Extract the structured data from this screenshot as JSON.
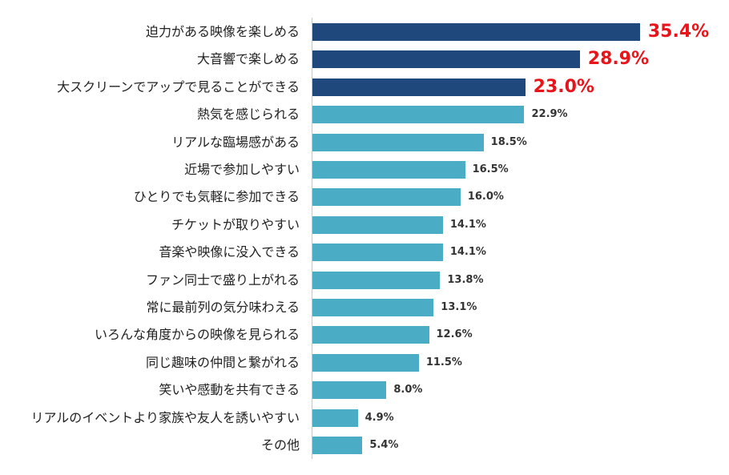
{
  "chart_data": {
    "type": "bar",
    "orientation": "horizontal",
    "title": "",
    "xlabel": "",
    "ylabel": "",
    "categories": [
      "迫力がある映像を楽しめる",
      "大音響で楽しめる",
      "大スクリーンでアップで見ることができる",
      "熱気を感じられる",
      "リアルな臨場感がある",
      "近場で参加しやすい",
      "ひとりでも気軽に参加できる",
      "チケットが取りやすい",
      "音楽や映像に没入できる",
      "ファン同士で盛り上がれる",
      "常に最前列の気分味わえる",
      "いろんな角度からの映像を見られる",
      "同じ趣味の仲間と繋がれる",
      "笑いや感動を共有できる",
      "リアルのイベントより家族や友人を誘いやすい",
      "その他"
    ],
    "values": [
      35.4,
      28.9,
      23.0,
      22.9,
      18.5,
      16.5,
      16.0,
      14.1,
      14.1,
      13.8,
      13.1,
      12.6,
      11.5,
      8.0,
      4.9,
      5.4
    ],
    "value_labels": [
      "35.4%",
      "28.9%",
      "23.0%",
      "22.9%",
      "18.5%",
      "16.5%",
      "16.0%",
      "14.1%",
      "14.1%",
      "13.8%",
      "13.1%",
      "12.6%",
      "11.5%",
      "8.0%",
      "4.9%",
      "5.4%"
    ],
    "highlight_count": 3,
    "grid": false,
    "legend": "none",
    "colors": {
      "highlight_bar": "#1f497d",
      "bar": "#4bacc6",
      "highlight_label": "#e8141b",
      "label": "#333333",
      "axis": "#c8c8c8"
    }
  }
}
